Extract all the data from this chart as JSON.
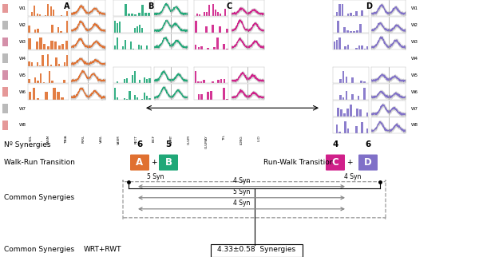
{
  "fig_width": 6.0,
  "fig_height": 3.22,
  "dpi": 100,
  "bg_color": "#ffffff",
  "walkers": [
    "W1",
    "W2",
    "W3",
    "W4",
    "W5",
    "W6",
    "W7",
    "W8"
  ],
  "muscles_A": [
    "SOL",
    "GASM",
    "TIBIA",
    "PERL",
    "VASL",
    "VASM"
  ],
  "muscles_B": [
    "RECT",
    "BICF",
    "SEMT",
    "GLUM",
    "GLUMAY"
  ],
  "muscles_C": [
    "TFL",
    "LONG",
    "ILIO"
  ],
  "muscles_all": [
    "SOL",
    "GASM",
    "TIBIA",
    "PERL",
    "VASL",
    "VASM",
    "RECT",
    "BICF",
    "SEMT",
    "GLUM",
    "GLUMAY",
    "TFL",
    "LONG",
    "ILIO"
  ],
  "color_A": "#E07030",
  "color_B": "#20A878",
  "color_C": "#D0208A",
  "color_D": "#8070C8",
  "num_synergies_A": "6",
  "num_synergies_B": "5",
  "num_synergies_C": "4",
  "num_synergies_D": "6",
  "syn_AB": "5 Syn",
  "syn_CD": "4 Syn",
  "syn_common_1": "4 Syn",
  "syn_common_2": "5 Syn",
  "syn_common_3": "4 Syn",
  "avg_text": "4.33±0.58  Synergies",
  "wrt_rwt_text": "WRT+RWT",
  "label_no_synergies": "Nº Synergies",
  "label_wrt": "Walk-Run Transition",
  "label_rwt": "Run-Walk Transition",
  "label_common": "Common Synergies",
  "label_common2": "Common Synergies"
}
